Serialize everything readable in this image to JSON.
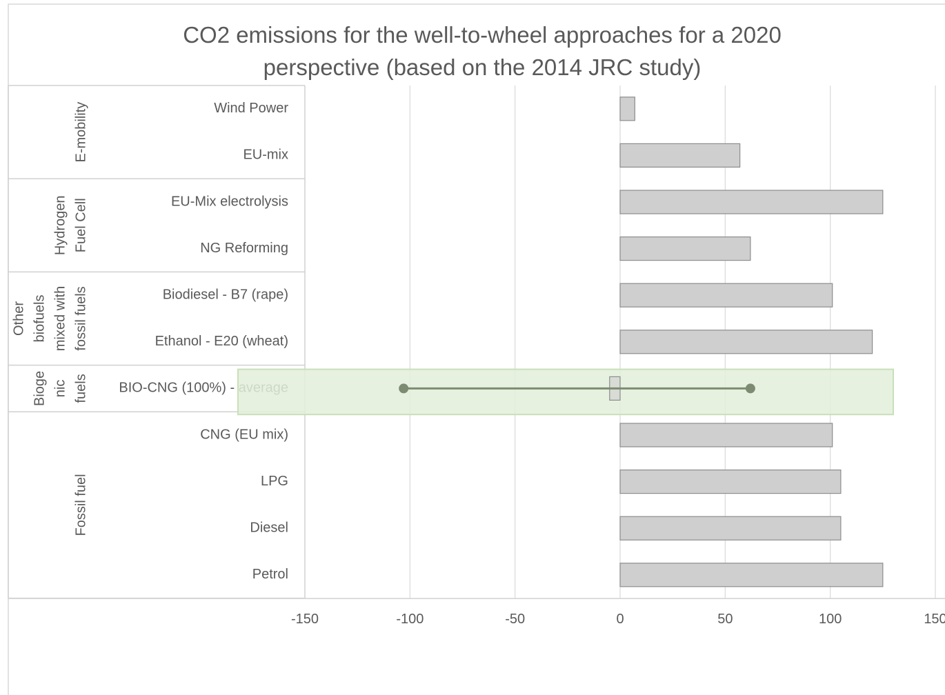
{
  "chart_data": {
    "type": "bar",
    "orientation": "horizontal",
    "title": [
      "CO2 emissions for the well-to-wheel approaches for a 2020",
      "perspective (based on the 2014 JRC study)"
    ],
    "xlabel": "",
    "ylabel": "",
    "xlim": [
      -150,
      150
    ],
    "xticks": [
      -150,
      -100,
      -50,
      0,
      50,
      100,
      150
    ],
    "grid": true,
    "legend": "none",
    "groups": [
      {
        "lines": [
          "E-mobility"
        ],
        "rows": [
          0,
          1
        ]
      },
      {
        "lines": [
          "Hydrogen",
          "Fuel Cell"
        ],
        "rows": [
          2,
          3
        ]
      },
      {
        "lines": [
          "Other",
          "biofuels",
          "mixed with",
          "fossil fuels"
        ],
        "rows": [
          4,
          5
        ]
      },
      {
        "lines": [
          "Bioge",
          "nic",
          "fuels"
        ],
        "rows": [
          6,
          6
        ]
      },
      {
        "lines": [
          "Fossil fuel"
        ],
        "rows": [
          7,
          10
        ]
      }
    ],
    "categories": [
      "Wind Power",
      "EU-mix",
      "EU-Mix electrolysis",
      "NG Reforming",
      "Biodiesel - B7 (rape)",
      "Ethanol - E20 (wheat)",
      "BIO-CNG (100%) - average",
      "CNG (EU mix)",
      "LPG",
      "Diesel",
      "Petrol"
    ],
    "values": [
      7,
      57,
      125,
      62,
      101,
      120,
      -5,
      101,
      105,
      105,
      125
    ],
    "range_markers": [
      {
        "category": "BIO-CNG (100%) - average",
        "min": -103,
        "max": 62
      }
    ],
    "colors": {
      "bar_fill": "#cfcfcf",
      "bar_stroke": "#8c8c8c",
      "highlight_fill": "#e3efd9",
      "highlight_stroke": "#c9dfb9",
      "range_line": "#7d8b72",
      "grid": "#d9d9d9",
      "text": "#595959"
    }
  }
}
